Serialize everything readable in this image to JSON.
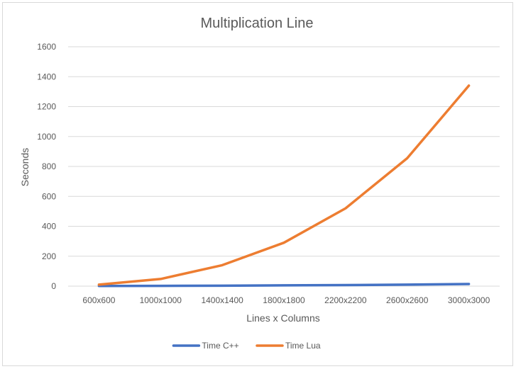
{
  "chart_data": {
    "type": "line",
    "title": "Multiplication Line",
    "xlabel": "Lines x Columns",
    "ylabel": "Seconds",
    "categories": [
      "600x600",
      "1000x1000",
      "1400x1400",
      "1800x1800",
      "2200x2200",
      "2600x2600",
      "3000x3000"
    ],
    "ylim": [
      0,
      1600
    ],
    "yticks": [
      "0",
      "200",
      "400",
      "600",
      "800",
      "1000",
      "1200",
      "1400",
      "1600"
    ],
    "grid": "horizontal",
    "legend_position": "bottom",
    "series": [
      {
        "name": "Time C++",
        "color": "#4472C4",
        "values": [
          1,
          2,
          3,
          5,
          7,
          10,
          14
        ]
      },
      {
        "name": "Time Lua",
        "color": "#ED7D31",
        "values": [
          10,
          48,
          140,
          290,
          520,
          855,
          1340
        ]
      }
    ]
  },
  "colors": {
    "title": "#595959",
    "axis_text": "#595959",
    "gridline": "#d9d9d9",
    "background": "#ffffff"
  }
}
